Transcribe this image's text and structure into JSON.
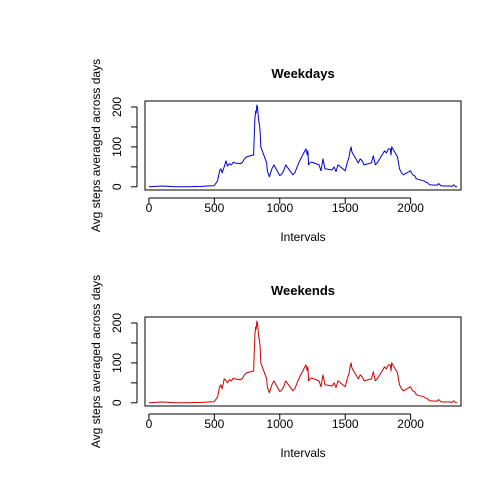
{
  "chart_data": [
    {
      "type": "line",
      "title": "Weekdays",
      "xlabel": "Intervals",
      "ylabel": "Avg steps averaged across days",
      "xlim": [
        -30,
        2385
      ],
      "ylim": [
        -8,
        215
      ],
      "xticks": [
        0,
        500,
        1000,
        1500,
        2000
      ],
      "yticks": [
        0,
        100,
        200
      ],
      "color": "#0000cc",
      "series": [
        {
          "x": [
            0,
            100,
            200,
            300,
            400,
            500,
            525,
            540,
            550,
            560,
            575,
            590,
            600,
            615,
            630,
            645,
            655,
            700,
            715,
            730,
            745,
            800,
            805,
            810,
            815,
            820,
            825,
            830,
            835,
            840,
            845,
            850,
            855,
            900,
            905,
            910,
            915,
            920,
            930,
            940,
            955,
            1000,
            1015,
            1030,
            1045,
            1100,
            1115,
            1130,
            1145,
            1200,
            1210,
            1215,
            1220,
            1230,
            1245,
            1300,
            1315,
            1330,
            1345,
            1400,
            1415,
            1430,
            1445,
            1500,
            1515,
            1530,
            1540,
            1545,
            1550,
            1555,
            1600,
            1615,
            1630,
            1645,
            1700,
            1715,
            1730,
            1745,
            1800,
            1815,
            1830,
            1845,
            1850,
            1855,
            1900,
            1915,
            1930,
            1945,
            2000,
            2015,
            2030,
            2045,
            2100,
            2115,
            2130,
            2145,
            2200,
            2215,
            2230,
            2245,
            2300,
            2315,
            2330,
            2345,
            2355
          ],
          "y": [
            0,
            2,
            0,
            0,
            1,
            3,
            15,
            40,
            45,
            35,
            50,
            65,
            52,
            58,
            55,
            62,
            60,
            58,
            62,
            70,
            75,
            80,
            130,
            170,
            190,
            185,
            205,
            200,
            180,
            165,
            155,
            140,
            100,
            60,
            40,
            35,
            30,
            25,
            35,
            45,
            55,
            28,
            32,
            40,
            55,
            30,
            35,
            48,
            60,
            95,
            80,
            90,
            55,
            60,
            62,
            55,
            40,
            70,
            45,
            42,
            50,
            38,
            55,
            40,
            60,
            75,
            95,
            100,
            90,
            85,
            60,
            70,
            65,
            55,
            60,
            78,
            55,
            60,
            90,
            85,
            95,
            95,
            80,
            100,
            75,
            45,
            35,
            30,
            40,
            30,
            28,
            20,
            15,
            12,
            10,
            5,
            4,
            8,
            3,
            2,
            2,
            1,
            5,
            0,
            0
          ]
        }
      ]
    },
    {
      "type": "line",
      "title": "Weekends",
      "xlabel": "Intervals",
      "ylabel": "Avg steps averaged across days",
      "xlim": [
        -30,
        2385
      ],
      "ylim": [
        -8,
        215
      ],
      "xticks": [
        0,
        500,
        1000,
        1500,
        2000
      ],
      "yticks": [
        0,
        100,
        200
      ],
      "color": "#cc0000",
      "series": [
        {
          "x": [
            0,
            100,
            200,
            300,
            400,
            500,
            525,
            540,
            550,
            560,
            575,
            590,
            600,
            615,
            630,
            645,
            655,
            700,
            715,
            730,
            745,
            800,
            805,
            810,
            815,
            820,
            825,
            830,
            835,
            840,
            845,
            850,
            855,
            900,
            905,
            910,
            915,
            920,
            930,
            940,
            955,
            1000,
            1015,
            1030,
            1045,
            1100,
            1115,
            1130,
            1145,
            1200,
            1210,
            1215,
            1220,
            1230,
            1245,
            1300,
            1315,
            1330,
            1345,
            1400,
            1415,
            1430,
            1445,
            1500,
            1515,
            1530,
            1540,
            1545,
            1550,
            1555,
            1600,
            1615,
            1630,
            1645,
            1700,
            1715,
            1730,
            1745,
            1800,
            1815,
            1830,
            1845,
            1850,
            1855,
            1900,
            1915,
            1930,
            1945,
            2000,
            2015,
            2030,
            2045,
            2100,
            2115,
            2130,
            2145,
            2200,
            2215,
            2230,
            2245,
            2300,
            2315,
            2330,
            2345,
            2355
          ],
          "y": [
            0,
            2,
            0,
            0,
            1,
            3,
            15,
            40,
            45,
            35,
            60,
            55,
            50,
            58,
            55,
            62,
            60,
            58,
            62,
            70,
            75,
            80,
            130,
            170,
            190,
            185,
            205,
            200,
            180,
            165,
            155,
            140,
            100,
            60,
            40,
            35,
            30,
            25,
            35,
            45,
            55,
            28,
            32,
            40,
            55,
            30,
            35,
            48,
            60,
            95,
            80,
            90,
            55,
            60,
            62,
            55,
            40,
            70,
            45,
            42,
            50,
            38,
            55,
            40,
            60,
            75,
            95,
            100,
            90,
            85,
            60,
            70,
            65,
            55,
            60,
            78,
            55,
            60,
            90,
            85,
            95,
            95,
            80,
            100,
            75,
            45,
            35,
            30,
            40,
            30,
            28,
            20,
            15,
            12,
            10,
            5,
            4,
            8,
            3,
            2,
            2,
            1,
            5,
            0,
            0
          ]
        }
      ]
    }
  ]
}
